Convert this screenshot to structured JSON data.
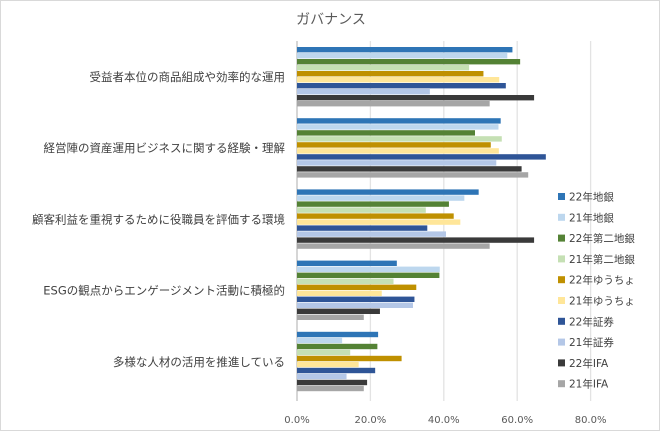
{
  "chart_data": {
    "type": "bar",
    "orientation": "horizontal",
    "title": "ガバナンス",
    "xlabel": "",
    "ylabel": "",
    "xlim": [
      0,
      80
    ],
    "x_ticks": [
      "0.0%",
      "20.0%",
      "40.0%",
      "60.0%",
      "80.0%"
    ],
    "grid": true,
    "legend_position": "right",
    "categories": [
      "受益者本位の商品組成や効率的な運用",
      "経営陣の資産運用ビジネスに関する経験・理解",
      "顧客利益を重視するために役職員を評価する環境",
      "ESGの観点からエンゲージメント活動に積極的",
      "多様な人材の活用を推進している"
    ],
    "series": [
      {
        "name": "22年地銀",
        "color": "#2e75b6",
        "values": [
          58.7,
          55.5,
          49.5,
          27.2,
          22.1
        ]
      },
      {
        "name": "21年地銀",
        "color": "#bdd7ee",
        "values": [
          57.3,
          54.9,
          45.6,
          38.9,
          12.3
        ]
      },
      {
        "name": "22年第二地銀",
        "color": "#548235",
        "values": [
          60.8,
          48.5,
          41.4,
          38.8,
          21.9
        ]
      },
      {
        "name": "21年第二地銀",
        "color": "#c5e0b4",
        "values": [
          46.9,
          55.8,
          35.1,
          26.3,
          14.5
        ]
      },
      {
        "name": "22年ゆうちょ",
        "color": "#bf9000",
        "values": [
          50.8,
          52.8,
          42.7,
          32.5,
          28.5
        ]
      },
      {
        "name": "21年ゆうちょ",
        "color": "#ffe699",
        "values": [
          55.1,
          55.0,
          44.5,
          23.1,
          16.8
        ]
      },
      {
        "name": "22年証券",
        "color": "#2f5597",
        "values": [
          56.9,
          67.8,
          35.5,
          32.0,
          21.3
        ]
      },
      {
        "name": "21年証券",
        "color": "#b4c7e7",
        "values": [
          36.2,
          54.3,
          40.6,
          31.6,
          13.5
        ]
      },
      {
        "name": "22年IFA",
        "color": "#3a3a3a",
        "values": [
          64.6,
          61.2,
          64.6,
          22.6,
          19.1
        ]
      },
      {
        "name": "21年IFA",
        "color": "#a6a6a6",
        "values": [
          52.5,
          63.0,
          52.5,
          18.2,
          18.2
        ]
      }
    ]
  }
}
